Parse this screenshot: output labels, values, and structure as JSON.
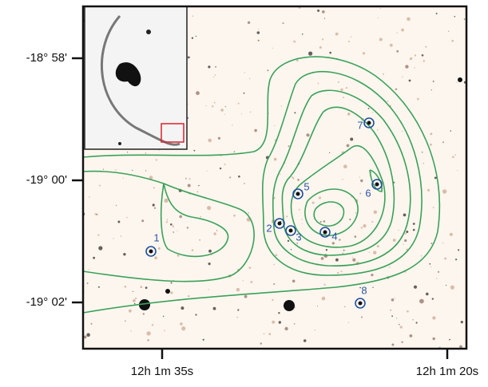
{
  "axes": {
    "y_labels": [
      "-18° 58'",
      "-19° 00'",
      "-19° 02'"
    ],
    "x_labels": [
      "12h 1m 35s",
      "12h 1m 20s"
    ]
  },
  "sources": [
    "1",
    "2",
    "3",
    "4",
    "5",
    "6",
    "7",
    "8"
  ]
}
